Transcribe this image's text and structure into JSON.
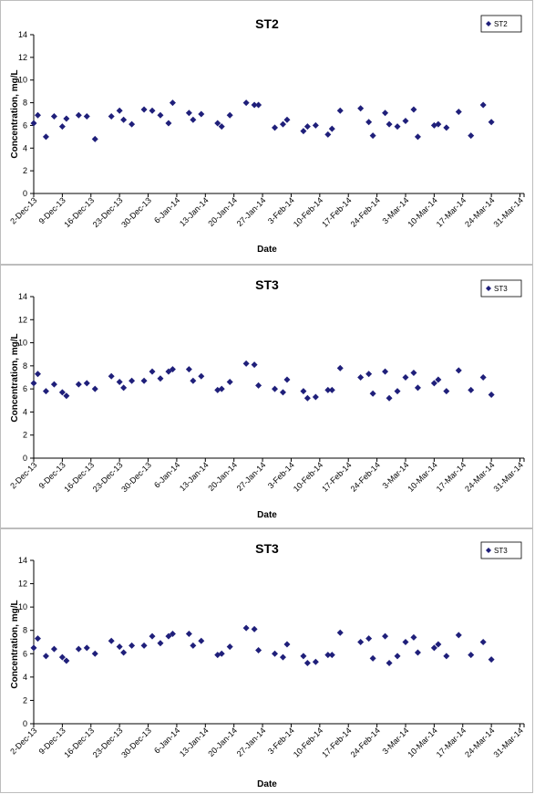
{
  "chart_data": [
    {
      "type": "scatter",
      "title": "ST2",
      "xlabel": "Date",
      "ylabel": "Concentration, mg/L",
      "ylim": [
        0,
        14
      ],
      "yticks": [
        0,
        2,
        4,
        6,
        8,
        10,
        12,
        14
      ],
      "x_range": [
        "2013-12-02",
        "2014-04-01"
      ],
      "x_tick_labels": [
        "2-Dec-13",
        "9-Dec-13",
        "16-Dec-13",
        "23-Dec-13",
        "30-Dec-13",
        "6-Jan-14",
        "13-Jan-14",
        "20-Jan-14",
        "27-Jan-14",
        "3-Feb-14",
        "10-Feb-14",
        "17-Feb-14",
        "24-Feb-14",
        "3-Mar-14",
        "10-Mar-14",
        "17-Mar-14",
        "24-Mar-14",
        "31-Mar-14"
      ],
      "grid": false,
      "legend_position": "top-right",
      "marker_color": "#1f1f7a",
      "series": [
        {
          "name": "ST2",
          "points": [
            {
              "x": "2013-12-02",
              "y": 6.2
            },
            {
              "x": "2013-12-03",
              "y": 6.9
            },
            {
              "x": "2013-12-05",
              "y": 5.0
            },
            {
              "x": "2013-12-07",
              "y": 6.8
            },
            {
              "x": "2013-12-09",
              "y": 5.9
            },
            {
              "x": "2013-12-10",
              "y": 6.6
            },
            {
              "x": "2013-12-13",
              "y": 6.9
            },
            {
              "x": "2013-12-15",
              "y": 6.8
            },
            {
              "x": "2013-12-17",
              "y": 4.8
            },
            {
              "x": "2013-12-21",
              "y": 6.8
            },
            {
              "x": "2013-12-23",
              "y": 7.3
            },
            {
              "x": "2013-12-24",
              "y": 6.5
            },
            {
              "x": "2013-12-26",
              "y": 6.1
            },
            {
              "x": "2013-12-29",
              "y": 7.4
            },
            {
              "x": "2013-12-31",
              "y": 7.3
            },
            {
              "x": "2014-01-02",
              "y": 6.9
            },
            {
              "x": "2014-01-04",
              "y": 6.2
            },
            {
              "x": "2014-01-05",
              "y": 8.0
            },
            {
              "x": "2014-01-09",
              "y": 7.1
            },
            {
              "x": "2014-01-10",
              "y": 6.5
            },
            {
              "x": "2014-01-12",
              "y": 7.0
            },
            {
              "x": "2014-01-16",
              "y": 6.2
            },
            {
              "x": "2014-01-17",
              "y": 5.9
            },
            {
              "x": "2014-01-19",
              "y": 6.9
            },
            {
              "x": "2014-01-23",
              "y": 8.0
            },
            {
              "x": "2014-01-25",
              "y": 7.8
            },
            {
              "x": "2014-01-26",
              "y": 7.8
            },
            {
              "x": "2014-01-30",
              "y": 5.8
            },
            {
              "x": "2014-02-01",
              "y": 6.1
            },
            {
              "x": "2014-02-02",
              "y": 6.5
            },
            {
              "x": "2014-02-06",
              "y": 5.5
            },
            {
              "x": "2014-02-07",
              "y": 5.9
            },
            {
              "x": "2014-02-09",
              "y": 6.0
            },
            {
              "x": "2014-02-12",
              "y": 5.2
            },
            {
              "x": "2014-02-13",
              "y": 5.7
            },
            {
              "x": "2014-02-15",
              "y": 7.3
            },
            {
              "x": "2014-02-20",
              "y": 7.5
            },
            {
              "x": "2014-02-22",
              "y": 6.3
            },
            {
              "x": "2014-02-23",
              "y": 5.1
            },
            {
              "x": "2014-02-26",
              "y": 7.1
            },
            {
              "x": "2014-02-27",
              "y": 6.1
            },
            {
              "x": "2014-03-01",
              "y": 5.9
            },
            {
              "x": "2014-03-03",
              "y": 6.4
            },
            {
              "x": "2014-03-05",
              "y": 7.4
            },
            {
              "x": "2014-03-06",
              "y": 5.0
            },
            {
              "x": "2014-03-10",
              "y": 6.0
            },
            {
              "x": "2014-03-11",
              "y": 6.1
            },
            {
              "x": "2014-03-13",
              "y": 5.8
            },
            {
              "x": "2014-03-16",
              "y": 7.2
            },
            {
              "x": "2014-03-19",
              "y": 5.1
            },
            {
              "x": "2014-03-22",
              "y": 7.8
            },
            {
              "x": "2014-03-24",
              "y": 6.3
            }
          ]
        }
      ]
    },
    {
      "type": "scatter",
      "title": "ST3",
      "xlabel": "Date",
      "ylabel": "Concentration, mg/L",
      "ylim": [
        0,
        14
      ],
      "yticks": [
        0,
        2,
        4,
        6,
        8,
        10,
        12,
        14
      ],
      "x_range": [
        "2013-12-02",
        "2014-04-01"
      ],
      "x_tick_labels": [
        "2-Dec-13",
        "9-Dec-13",
        "16-Dec-13",
        "23-Dec-13",
        "30-Dec-13",
        "6-Jan-14",
        "13-Jan-14",
        "20-Jan-14",
        "27-Jan-14",
        "3-Feb-14",
        "10-Feb-14",
        "17-Feb-14",
        "24-Feb-14",
        "3-Mar-14",
        "10-Mar-14",
        "17-Mar-14",
        "24-Mar-14",
        "31-Mar-14"
      ],
      "grid": false,
      "legend_position": "top-right",
      "marker_color": "#1f1f7a",
      "series": [
        {
          "name": "ST3",
          "points": [
            {
              "x": "2013-12-02",
              "y": 6.5
            },
            {
              "x": "2013-12-03",
              "y": 7.3
            },
            {
              "x": "2013-12-05",
              "y": 5.8
            },
            {
              "x": "2013-12-07",
              "y": 6.4
            },
            {
              "x": "2013-12-09",
              "y": 5.7
            },
            {
              "x": "2013-12-10",
              "y": 5.4
            },
            {
              "x": "2013-12-13",
              "y": 6.4
            },
            {
              "x": "2013-12-15",
              "y": 6.5
            },
            {
              "x": "2013-12-17",
              "y": 6.0
            },
            {
              "x": "2013-12-21",
              "y": 7.1
            },
            {
              "x": "2013-12-23",
              "y": 6.6
            },
            {
              "x": "2013-12-24",
              "y": 6.1
            },
            {
              "x": "2013-12-26",
              "y": 6.7
            },
            {
              "x": "2013-12-29",
              "y": 6.7
            },
            {
              "x": "2013-12-31",
              "y": 7.5
            },
            {
              "x": "2014-01-02",
              "y": 6.9
            },
            {
              "x": "2014-01-04",
              "y": 7.5
            },
            {
              "x": "2014-01-05",
              "y": 7.7
            },
            {
              "x": "2014-01-09",
              "y": 7.7
            },
            {
              "x": "2014-01-10",
              "y": 6.7
            },
            {
              "x": "2014-01-12",
              "y": 7.1
            },
            {
              "x": "2014-01-16",
              "y": 5.9
            },
            {
              "x": "2014-01-17",
              "y": 6.0
            },
            {
              "x": "2014-01-19",
              "y": 6.6
            },
            {
              "x": "2014-01-23",
              "y": 8.2
            },
            {
              "x": "2014-01-25",
              "y": 8.1
            },
            {
              "x": "2014-01-26",
              "y": 6.3
            },
            {
              "x": "2014-01-30",
              "y": 6.0
            },
            {
              "x": "2014-02-01",
              "y": 5.7
            },
            {
              "x": "2014-02-02",
              "y": 6.8
            },
            {
              "x": "2014-02-06",
              "y": 5.8
            },
            {
              "x": "2014-02-07",
              "y": 5.2
            },
            {
              "x": "2014-02-09",
              "y": 5.3
            },
            {
              "x": "2014-02-12",
              "y": 5.9
            },
            {
              "x": "2014-02-13",
              "y": 5.9
            },
            {
              "x": "2014-02-15",
              "y": 7.8
            },
            {
              "x": "2014-02-20",
              "y": 7.0
            },
            {
              "x": "2014-02-22",
              "y": 7.3
            },
            {
              "x": "2014-02-23",
              "y": 5.6
            },
            {
              "x": "2014-02-26",
              "y": 7.5
            },
            {
              "x": "2014-02-27",
              "y": 5.2
            },
            {
              "x": "2014-03-01",
              "y": 5.8
            },
            {
              "x": "2014-03-03",
              "y": 7.0
            },
            {
              "x": "2014-03-05",
              "y": 7.4
            },
            {
              "x": "2014-03-06",
              "y": 6.1
            },
            {
              "x": "2014-03-10",
              "y": 6.5
            },
            {
              "x": "2014-03-11",
              "y": 6.8
            },
            {
              "x": "2014-03-13",
              "y": 5.8
            },
            {
              "x": "2014-03-16",
              "y": 7.6
            },
            {
              "x": "2014-03-19",
              "y": 5.9
            },
            {
              "x": "2014-03-22",
              "y": 7.0
            },
            {
              "x": "2014-03-24",
              "y": 5.5
            }
          ]
        }
      ]
    },
    {
      "type": "scatter",
      "title": "ST3",
      "xlabel": "Date",
      "ylabel": "Concentration, mg/L",
      "ylim": [
        0,
        14
      ],
      "yticks": [
        0,
        2,
        4,
        6,
        8,
        10,
        12,
        14
      ],
      "x_range": [
        "2013-12-02",
        "2014-04-01"
      ],
      "x_tick_labels": [
        "2-Dec-13",
        "9-Dec-13",
        "16-Dec-13",
        "23-Dec-13",
        "30-Dec-13",
        "6-Jan-14",
        "13-Jan-14",
        "20-Jan-14",
        "27-Jan-14",
        "3-Feb-14",
        "10-Feb-14",
        "17-Feb-14",
        "24-Feb-14",
        "3-Mar-14",
        "10-Mar-14",
        "17-Mar-14",
        "24-Mar-14",
        "31-Mar-14"
      ],
      "grid": false,
      "legend_position": "top-right",
      "marker_color": "#1f1f7a",
      "series": [
        {
          "name": "ST3",
          "points": [
            {
              "x": "2013-12-02",
              "y": 6.5
            },
            {
              "x": "2013-12-03",
              "y": 7.3
            },
            {
              "x": "2013-12-05",
              "y": 5.8
            },
            {
              "x": "2013-12-07",
              "y": 6.4
            },
            {
              "x": "2013-12-09",
              "y": 5.7
            },
            {
              "x": "2013-12-10",
              "y": 5.4
            },
            {
              "x": "2013-12-13",
              "y": 6.4
            },
            {
              "x": "2013-12-15",
              "y": 6.5
            },
            {
              "x": "2013-12-17",
              "y": 6.0
            },
            {
              "x": "2013-12-21",
              "y": 7.1
            },
            {
              "x": "2013-12-23",
              "y": 6.6
            },
            {
              "x": "2013-12-24",
              "y": 6.1
            },
            {
              "x": "2013-12-26",
              "y": 6.7
            },
            {
              "x": "2013-12-29",
              "y": 6.7
            },
            {
              "x": "2013-12-31",
              "y": 7.5
            },
            {
              "x": "2014-01-02",
              "y": 6.9
            },
            {
              "x": "2014-01-04",
              "y": 7.5
            },
            {
              "x": "2014-01-05",
              "y": 7.7
            },
            {
              "x": "2014-01-09",
              "y": 7.7
            },
            {
              "x": "2014-01-10",
              "y": 6.7
            },
            {
              "x": "2014-01-12",
              "y": 7.1
            },
            {
              "x": "2014-01-16",
              "y": 5.9
            },
            {
              "x": "2014-01-17",
              "y": 6.0
            },
            {
              "x": "2014-01-19",
              "y": 6.6
            },
            {
              "x": "2014-01-23",
              "y": 8.2
            },
            {
              "x": "2014-01-25",
              "y": 8.1
            },
            {
              "x": "2014-01-26",
              "y": 6.3
            },
            {
              "x": "2014-01-30",
              "y": 6.0
            },
            {
              "x": "2014-02-01",
              "y": 5.7
            },
            {
              "x": "2014-02-02",
              "y": 6.8
            },
            {
              "x": "2014-02-06",
              "y": 5.8
            },
            {
              "x": "2014-02-07",
              "y": 5.2
            },
            {
              "x": "2014-02-09",
              "y": 5.3
            },
            {
              "x": "2014-02-12",
              "y": 5.9
            },
            {
              "x": "2014-02-13",
              "y": 5.9
            },
            {
              "x": "2014-02-15",
              "y": 7.8
            },
            {
              "x": "2014-02-20",
              "y": 7.0
            },
            {
              "x": "2014-02-22",
              "y": 7.3
            },
            {
              "x": "2014-02-23",
              "y": 5.6
            },
            {
              "x": "2014-02-26",
              "y": 7.5
            },
            {
              "x": "2014-02-27",
              "y": 5.2
            },
            {
              "x": "2014-03-01",
              "y": 5.8
            },
            {
              "x": "2014-03-03",
              "y": 7.0
            },
            {
              "x": "2014-03-05",
              "y": 7.4
            },
            {
              "x": "2014-03-06",
              "y": 6.1
            },
            {
              "x": "2014-03-10",
              "y": 6.5
            },
            {
              "x": "2014-03-11",
              "y": 6.8
            },
            {
              "x": "2014-03-13",
              "y": 5.8
            },
            {
              "x": "2014-03-16",
              "y": 7.6
            },
            {
              "x": "2014-03-19",
              "y": 5.9
            },
            {
              "x": "2014-03-22",
              "y": 7.0
            },
            {
              "x": "2014-03-24",
              "y": 5.5
            }
          ]
        }
      ]
    }
  ]
}
